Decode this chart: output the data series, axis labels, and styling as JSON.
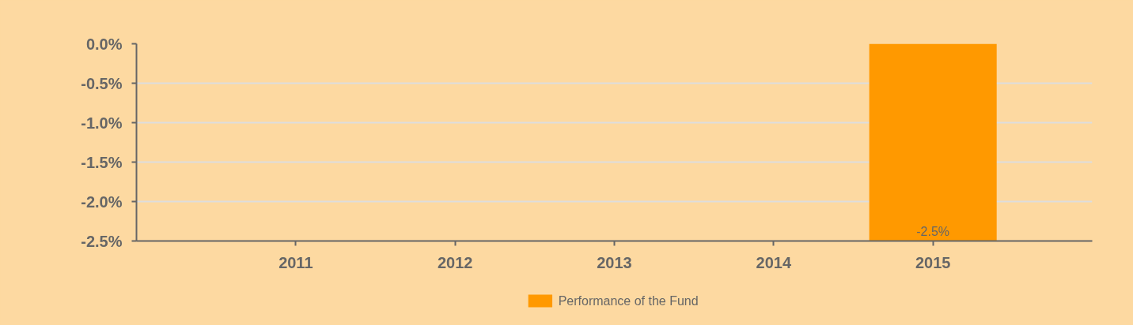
{
  "chart_data": {
    "type": "bar",
    "x": [
      2015
    ],
    "xlim": [
      2010,
      2016
    ],
    "xticks": [
      2011,
      2012,
      2013,
      2014,
      2015
    ],
    "series": [
      {
        "name": "Performance of the Fund",
        "color": "#ff9900",
        "values": [
          -2.5
        ],
        "value_labels": [
          "-2.5%"
        ]
      }
    ],
    "ylim": [
      -2.5,
      0
    ],
    "yticks": [
      {
        "value": 0,
        "label": "0.0%"
      },
      {
        "value": -0.5,
        "label": "-0.5%"
      },
      {
        "value": -1,
        "label": "-1.0%"
      },
      {
        "value": -1.5,
        "label": "-1.5%"
      },
      {
        "value": -2,
        "label": "-2.0%"
      },
      {
        "value": -2.5,
        "label": "-2.5%"
      }
    ],
    "grid": "y",
    "legend": "bottom"
  }
}
